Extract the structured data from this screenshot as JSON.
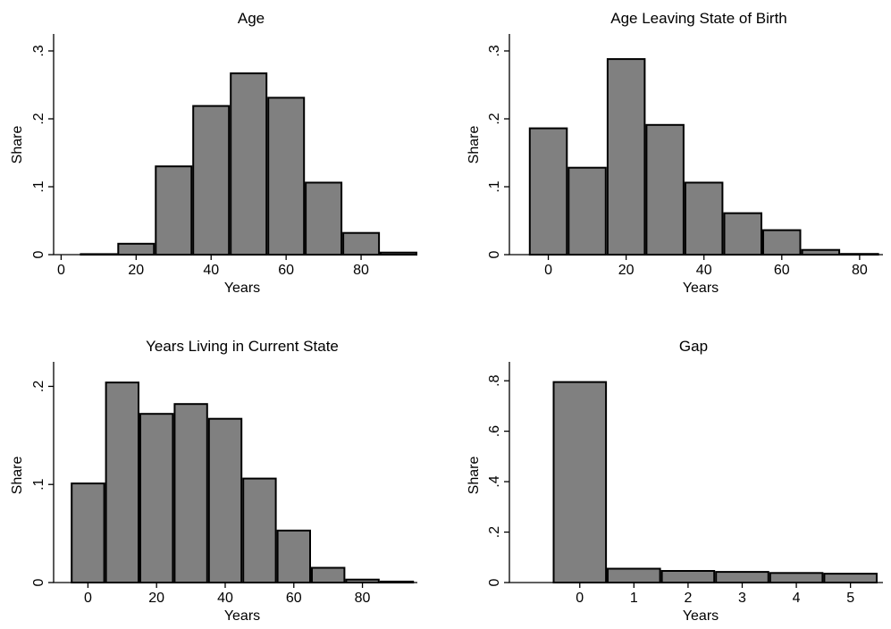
{
  "chart_data": [
    {
      "type": "bar",
      "title": "Age",
      "xlabel": "Years",
      "ylabel": "Share",
      "bin_width": 10,
      "x": [
        10,
        20,
        30,
        40,
        50,
        60,
        70,
        80,
        90
      ],
      "values": [
        0.0,
        0.016,
        0.13,
        0.219,
        0.267,
        0.231,
        0.106,
        0.032,
        0.003
      ],
      "xlim": [
        -2,
        95
      ],
      "ylim": [
        0,
        0.325
      ],
      "xticks": [
        0,
        20,
        40,
        60,
        80
      ],
      "xtick_labels": [
        "0",
        "20",
        "40",
        "60",
        "80"
      ],
      "yticks": [
        0,
        0.1,
        0.2,
        0.3
      ],
      "ytick_labels": [
        "0",
        ".1",
        ".2",
        ".3"
      ],
      "grid": false,
      "legend": "none"
    },
    {
      "type": "bar",
      "title": "Age Leaving State of Birth",
      "xlabel": "Years",
      "ylabel": "Share",
      "bin_width": 10,
      "x": [
        0,
        10,
        20,
        30,
        40,
        50,
        60,
        70,
        80
      ],
      "values": [
        0.186,
        0.128,
        0.288,
        0.191,
        0.106,
        0.061,
        0.036,
        0.007,
        0.001
      ],
      "xlim": [
        -10,
        86
      ],
      "ylim": [
        0,
        0.325
      ],
      "xticks": [
        0,
        20,
        40,
        60,
        80
      ],
      "xtick_labels": [
        "0",
        "20",
        "40",
        "60",
        "80"
      ],
      "yticks": [
        0,
        0.1,
        0.2,
        0.3
      ],
      "ytick_labels": [
        "0",
        ".1",
        ".2",
        ".3"
      ],
      "grid": false,
      "legend": "none"
    },
    {
      "type": "bar",
      "title": "Years Living in Current State",
      "xlabel": "Years",
      "ylabel": "Share",
      "bin_width": 10,
      "x": [
        0,
        10,
        20,
        30,
        40,
        50,
        60,
        70,
        80,
        90
      ],
      "values": [
        0.101,
        0.204,
        0.172,
        0.182,
        0.167,
        0.106,
        0.053,
        0.015,
        0.003,
        0.001
      ],
      "xlim": [
        -10,
        96
      ],
      "ylim": [
        0,
        0.225
      ],
      "xticks": [
        0,
        20,
        40,
        60,
        80
      ],
      "xtick_labels": [
        "0",
        "20",
        "40",
        "60",
        "80"
      ],
      "yticks": [
        0,
        0.1,
        0.2
      ],
      "ytick_labels": [
        "0",
        ".1",
        ".2"
      ],
      "grid": false,
      "legend": "none"
    },
    {
      "type": "bar",
      "title": "Gap",
      "xlabel": "Years",
      "ylabel": "Share",
      "bin_width": 1,
      "x": [
        0,
        1,
        2,
        3,
        4,
        5
      ],
      "values": [
        0.795,
        0.055,
        0.046,
        0.042,
        0.038,
        0.035
      ],
      "xlim": [
        -1.3,
        5.6
      ],
      "ylim": [
        0,
        0.875
      ],
      "xticks": [
        0,
        1,
        2,
        3,
        4,
        5
      ],
      "xtick_labels": [
        "0",
        "1",
        "2",
        "3",
        "4",
        "5"
      ],
      "yticks": [
        0,
        0.2,
        0.4,
        0.6,
        0.8
      ],
      "ytick_labels": [
        "0",
        ".2",
        ".4",
        ".6",
        ".8"
      ],
      "grid": false,
      "legend": "none"
    }
  ]
}
